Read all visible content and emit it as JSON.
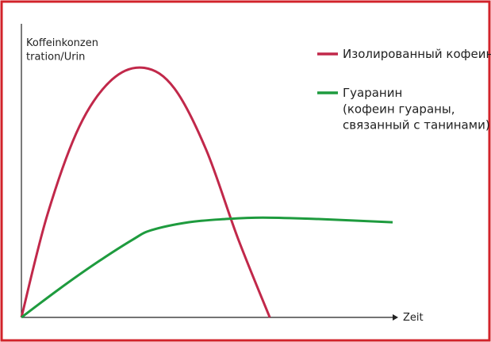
{
  "chart_data": {
    "type": "line",
    "y_label": "Koffeinkonzen\ntration/Urin",
    "x_label": "Zeit",
    "xlim": [
      0,
      100
    ],
    "ylim": [
      0,
      100
    ],
    "series": [
      {
        "name": "Изолированный кофеин",
        "color": "#c1284a",
        "x": [
          0,
          7,
          15.6,
          24.4,
          33.1,
          41.2,
          49.8,
          58.3,
          66.9
        ],
        "values": [
          0,
          35,
          65,
          81,
          85,
          78,
          57,
          27,
          0
        ]
      },
      {
        "name": "Гуаранин\n(кофеин гуараны,\nсвязанный с танинами)",
        "color": "#1e9b3e",
        "x": [
          0,
          10,
          20,
          30,
          35,
          45,
          55,
          65,
          80,
          100
        ],
        "values": [
          0,
          9.5,
          18.4,
          26.5,
          29.7,
          32.4,
          33.5,
          34,
          33.5,
          32.4
        ]
      }
    ]
  }
}
